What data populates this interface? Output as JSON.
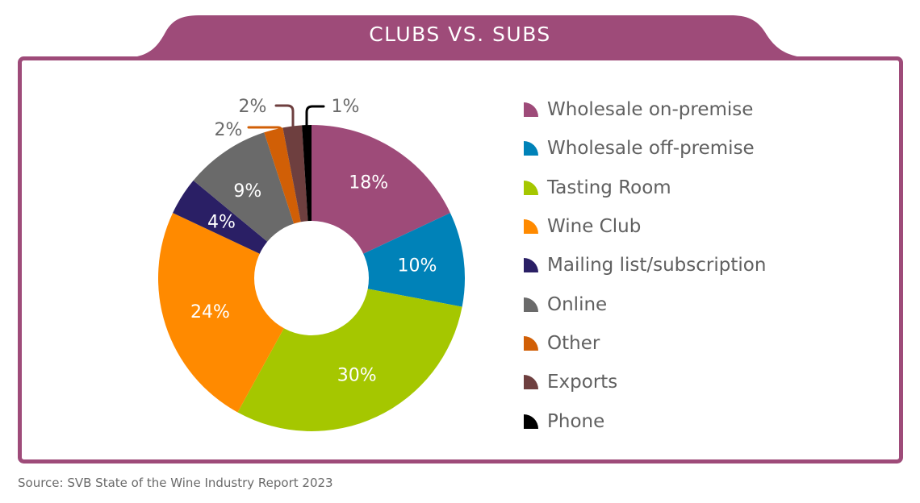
{
  "header": {
    "title": "CLUBS VS. SUBS",
    "accent_color": "#9e4b79"
  },
  "chart_data": {
    "type": "pie",
    "variant": "donut",
    "title": "CLUBS VS. SUBS",
    "categories": [
      "Wholesale on-premise",
      "Wholesale off-premise",
      "Tasting Room",
      "Wine Club",
      "Mailing list/subscription",
      "Online",
      "Other",
      "Exports",
      "Phone"
    ],
    "values": [
      18,
      10,
      30,
      24,
      4,
      9,
      2,
      2,
      1
    ],
    "labels": [
      "18%",
      "10%",
      "30%",
      "24%",
      "4%",
      "9%",
      "2%",
      "2%",
      "1%"
    ],
    "colors": [
      "#9e4b79",
      "#0082b8",
      "#a5c700",
      "#ff8a00",
      "#2a1f65",
      "#6a6a6a",
      "#d15f06",
      "#6e3f3f",
      "#000000"
    ],
    "start_angle_deg": 0,
    "direction": "clockwise",
    "legend_position": "right",
    "unit": "%"
  },
  "legend": {
    "items": [
      {
        "label": "Wholesale on-premise",
        "color": "#9e4b79"
      },
      {
        "label": "Wholesale off-premise",
        "color": "#0082b8"
      },
      {
        "label": "Tasting Room",
        "color": "#a5c700"
      },
      {
        "label": "Wine Club",
        "color": "#ff8a00"
      },
      {
        "label": "Mailing list/subscription",
        "color": "#2a1f65"
      },
      {
        "label": "Online",
        "color": "#6a6a6a"
      },
      {
        "label": "Other",
        "color": "#d15f06"
      },
      {
        "label": "Exports",
        "color": "#6e3f3f"
      },
      {
        "label": "Phone",
        "color": "#000000"
      }
    ]
  },
  "footer": {
    "source": "Source:  SVB State of the Wine Industry Report 2023"
  }
}
